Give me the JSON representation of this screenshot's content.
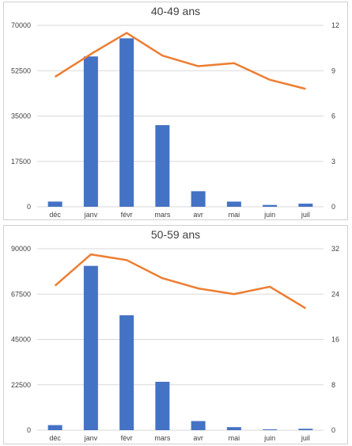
{
  "chart_data": [
    {
      "type": "bar+line",
      "title": "40-49 ans",
      "categories": [
        "déc",
        "janv",
        "févr",
        "mars",
        "avr",
        "mai",
        "juin",
        "juil"
      ],
      "series": [
        {
          "type": "bar",
          "axis": "left",
          "values": [
            2000,
            58000,
            65000,
            31500,
            6000,
            2000,
            700,
            1200
          ]
        },
        {
          "type": "line",
          "axis": "right",
          "values": [
            8.6,
            10.1,
            11.5,
            10.0,
            9.3,
            9.5,
            8.4,
            7.8
          ]
        }
      ],
      "left_axis": {
        "ticks": [
          "0",
          "17500",
          "35000",
          "52500",
          "70000"
        ],
        "ylim": [
          0,
          70000
        ]
      },
      "right_axis": {
        "ticks": [
          "0",
          "3",
          "6",
          "9",
          "12"
        ],
        "ylim": [
          0,
          12
        ]
      },
      "colors": {
        "bar": "#4472C4",
        "line": "#ED7D31"
      },
      "grid": true
    },
    {
      "type": "bar+line",
      "title": "50-59 ans",
      "categories": [
        "déc",
        "janv",
        "févr",
        "mars",
        "avr",
        "mai",
        "juin",
        "juil"
      ],
      "series": [
        {
          "type": "bar",
          "axis": "left",
          "values": [
            2500,
            81500,
            57000,
            24000,
            4500,
            1500,
            400,
            700
          ]
        },
        {
          "type": "line",
          "axis": "right",
          "values": [
            25.5,
            31.0,
            30.0,
            26.8,
            25.0,
            24.0,
            25.3,
            21.5
          ]
        }
      ],
      "left_axis": {
        "ticks": [
          "0",
          "22500",
          "45000",
          "67500",
          "90000"
        ],
        "ylim": [
          0,
          90000
        ]
      },
      "right_axis": {
        "ticks": [
          "0",
          "8",
          "16",
          "24",
          "32"
        ],
        "ylim": [
          0,
          32
        ]
      },
      "colors": {
        "bar": "#4472C4",
        "line": "#ED7D31"
      },
      "grid": true
    }
  ]
}
